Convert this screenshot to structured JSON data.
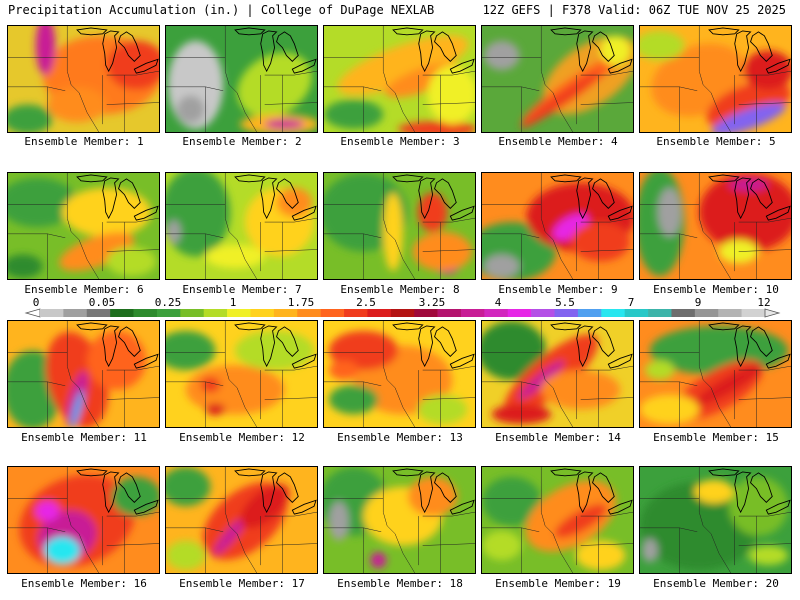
{
  "header": {
    "title": "Precipitation Accumulation (in.) | College of DuPage NEXLAB",
    "run_info": "12Z GEFS | F378 Valid: 06Z TUE NOV 25 2025"
  },
  "colorbar": {
    "tick_labels": [
      "0",
      "0.05",
      "0.25",
      "1",
      "1.75",
      "2.5",
      "3.25",
      "4",
      "5.5",
      "7",
      "9",
      "12"
    ],
    "colors": [
      "#c8c8c8",
      "#a0a0a0",
      "#787878",
      "#1e6e1e",
      "#2e8b2e",
      "#3ca03c",
      "#78be28",
      "#b4dc28",
      "#f0f028",
      "#ffd21e",
      "#ffb41e",
      "#ff8c1e",
      "#ff641e",
      "#f03c1e",
      "#dc1e1e",
      "#b41414",
      "#a00a3c",
      "#b4146e",
      "#c81e96",
      "#d228be",
      "#e628e6",
      "#b450e6",
      "#8264f0",
      "#50a0f0",
      "#28e6f0",
      "#28c8c8",
      "#3cb4aa",
      "#6e6e6e",
      "#969696",
      "#b4b4b4",
      "#d2d2d2"
    ]
  },
  "members": [
    {
      "label": "Ensemble Member: 1",
      "base": "#e6c82c",
      "blobs": [
        {
          "c": "#ff7a1e"
        },
        {
          "c": "#f03c1e"
        },
        {
          "c": "#c81e96"
        },
        {
          "c": "#3ca03c"
        },
        {
          "c": "#ff8c1e"
        }
      ]
    },
    {
      "label": "Ensemble Member: 2",
      "base": "#3ca03c",
      "blobs": [
        {
          "c": "#c8c8c8"
        },
        {
          "c": "#a0a0a0"
        },
        {
          "c": "#b4dc28"
        },
        {
          "c": "#ffb41e"
        },
        {
          "c": "#c81e96"
        }
      ]
    },
    {
      "label": "Ensemble Member: 3",
      "base": "#b4dc28",
      "blobs": [
        {
          "c": "#ffb41e"
        },
        {
          "c": "#ff8c1e"
        },
        {
          "c": "#3ca03c"
        },
        {
          "c": "#f03c1e"
        },
        {
          "c": "#f0f028"
        }
      ]
    },
    {
      "label": "Ensemble Member: 4",
      "base": "#5aa83a",
      "blobs": [
        {
          "c": "#f0a020"
        },
        {
          "c": "#ff641e"
        },
        {
          "c": "#f03c1e"
        },
        {
          "c": "#a0a0a0"
        },
        {
          "c": "#f0f028"
        }
      ]
    },
    {
      "label": "Ensemble Member: 5",
      "base": "#ffb41e",
      "blobs": [
        {
          "c": "#ff8c1e"
        },
        {
          "c": "#f03c1e"
        },
        {
          "c": "#8264f0"
        },
        {
          "c": "#b4dc28"
        },
        {
          "c": "#dc1e1e"
        }
      ]
    },
    {
      "label": "Ensemble Member: 6",
      "base": "#78be28",
      "blobs": [
        {
          "c": "#3ca03c"
        },
        {
          "c": "#ffd21e"
        },
        {
          "c": "#ff8c1e"
        },
        {
          "c": "#2e8b2e"
        },
        {
          "c": "#b4dc28"
        }
      ]
    },
    {
      "label": "Ensemble Member: 7",
      "base": "#b4dc28",
      "blobs": [
        {
          "c": "#3ca03c"
        },
        {
          "c": "#ffd21e"
        },
        {
          "c": "#ff8c1e"
        },
        {
          "c": "#a0a0a0"
        },
        {
          "c": "#f0f028"
        }
      ]
    },
    {
      "label": "Ensemble Member: 8",
      "base": "#78be28",
      "blobs": [
        {
          "c": "#3ca03c"
        },
        {
          "c": "#ffd21e"
        },
        {
          "c": "#f03c1e"
        },
        {
          "c": "#c81e96"
        },
        {
          "c": "#ff8c1e"
        }
      ]
    },
    {
      "label": "Ensemble Member: 9",
      "base": "#ff8c1e",
      "blobs": [
        {
          "c": "#3ca03c"
        },
        {
          "c": "#a0a0a0"
        },
        {
          "c": "#dc1e1e"
        },
        {
          "c": "#e628e6"
        },
        {
          "c": "#f03c1e"
        }
      ]
    },
    {
      "label": "Ensemble Member: 10",
      "base": "#ff8c1e",
      "blobs": [
        {
          "c": "#3ca03c"
        },
        {
          "c": "#a0a0a0"
        },
        {
          "c": "#dc1e1e"
        },
        {
          "c": "#c81e96"
        },
        {
          "c": "#f0f028"
        }
      ]
    },
    {
      "label": "Ensemble Member: 11",
      "base": "#ffb41e",
      "blobs": [
        {
          "c": "#3ca03c"
        },
        {
          "c": "#f03c1e"
        },
        {
          "c": "#c81e96"
        },
        {
          "c": "#50a0f0"
        },
        {
          "c": "#ff641e"
        }
      ]
    },
    {
      "label": "Ensemble Member: 12",
      "base": "#ffd21e",
      "blobs": [
        {
          "c": "#3ca03c"
        },
        {
          "c": "#ff8c1e"
        },
        {
          "c": "#f03c1e"
        },
        {
          "c": "#b4dc28"
        },
        {
          "c": "#dc1e1e"
        }
      ]
    },
    {
      "label": "Ensemble Member: 13",
      "base": "#ffd21e",
      "blobs": [
        {
          "c": "#ff8c1e"
        },
        {
          "c": "#3ca03c"
        },
        {
          "c": "#f03c1e"
        },
        {
          "c": "#b4dc28"
        },
        {
          "c": "#ff641e"
        }
      ]
    },
    {
      "label": "Ensemble Member: 14",
      "base": "#f0d028",
      "blobs": [
        {
          "c": "#2e8b2e"
        },
        {
          "c": "#f03c1e"
        },
        {
          "c": "#c81e96"
        },
        {
          "c": "#ff8c1e"
        },
        {
          "c": "#dc1e1e"
        }
      ]
    },
    {
      "label": "Ensemble Member: 15",
      "base": "#ff8c1e",
      "blobs": [
        {
          "c": "#3ca03c"
        },
        {
          "c": "#f03c1e"
        },
        {
          "c": "#dc1e1e"
        },
        {
          "c": "#ffd21e"
        },
        {
          "c": "#b4dc28"
        }
      ]
    },
    {
      "label": "Ensemble Member: 16",
      "base": "#ff8c1e",
      "blobs": [
        {
          "c": "#f03c1e"
        },
        {
          "c": "#c81e96"
        },
        {
          "c": "#28e6f0"
        },
        {
          "c": "#e628e6"
        },
        {
          "c": "#3ca03c"
        }
      ]
    },
    {
      "label": "Ensemble Member: 17",
      "base": "#ffb41e",
      "blobs": [
        {
          "c": "#3ca03c"
        },
        {
          "c": "#f03c1e"
        },
        {
          "c": "#c81e96"
        },
        {
          "c": "#dc1e1e"
        },
        {
          "c": "#b4dc28"
        }
      ]
    },
    {
      "label": "Ensemble Member: 18",
      "base": "#78be28",
      "blobs": [
        {
          "c": "#3ca03c"
        },
        {
          "c": "#a0a0a0"
        },
        {
          "c": "#ffd21e"
        },
        {
          "c": "#ff8c1e"
        },
        {
          "c": "#c81e96"
        }
      ]
    },
    {
      "label": "Ensemble Member: 19",
      "base": "#78be28",
      "blobs": [
        {
          "c": "#3ca03c"
        },
        {
          "c": "#ff8c1e"
        },
        {
          "c": "#f03c1e"
        },
        {
          "c": "#ffd21e"
        },
        {
          "c": "#b4dc28"
        }
      ]
    },
    {
      "label": "Ensemble Member: 20",
      "base": "#3ca03c",
      "blobs": [
        {
          "c": "#2e8b2e"
        },
        {
          "c": "#78be28"
        },
        {
          "c": "#ffd21e"
        },
        {
          "c": "#a0a0a0"
        },
        {
          "c": "#b4dc28"
        }
      ]
    }
  ]
}
